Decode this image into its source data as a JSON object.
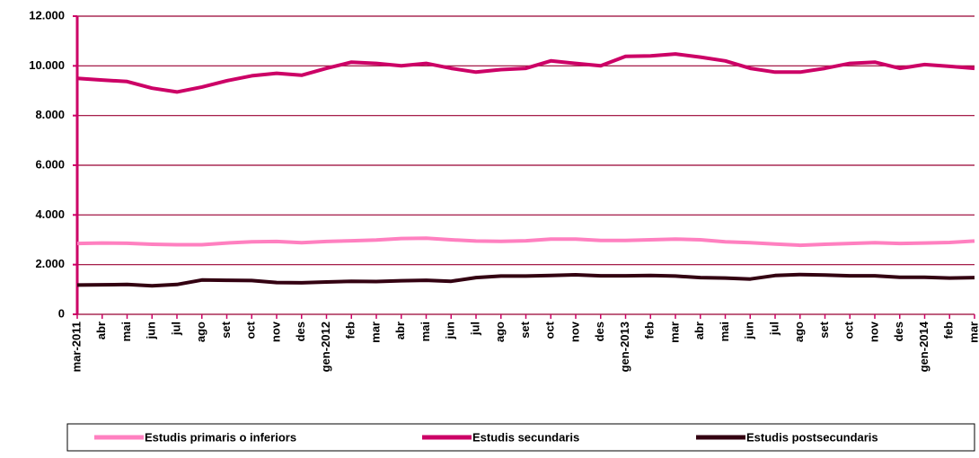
{
  "chart_data": {
    "type": "line",
    "categories": [
      "mar-2011",
      "abr",
      "mai",
      "jun",
      "jul",
      "ago",
      "set",
      "oct",
      "nov",
      "des",
      "gen-2012",
      "feb",
      "mar",
      "abr",
      "mai",
      "jun",
      "jul",
      "ago",
      "set",
      "oct",
      "nov",
      "des",
      "gen-2013",
      "feb",
      "mar",
      "abr",
      "mai",
      "jun",
      "jul",
      "ago",
      "set",
      "oct",
      "nov",
      "des",
      "gen-2014",
      "feb",
      "mar"
    ],
    "series": [
      {
        "name": "Estudis primaris o inferiors",
        "color": "#ff80c0",
        "values": [
          2850,
          2870,
          2860,
          2820,
          2800,
          2800,
          2870,
          2920,
          2930,
          2880,
          2930,
          2960,
          2990,
          3050,
          3060,
          3000,
          2950,
          2940,
          2960,
          3030,
          3030,
          2970,
          2970,
          3000,
          3030,
          3000,
          2920,
          2880,
          2830,
          2780,
          2820,
          2850,
          2880,
          2850,
          2870,
          2890,
          2950
        ]
      },
      {
        "name": "Estudis secundaris",
        "color": "#cc0066",
        "values": [
          9500,
          9430,
          9370,
          9100,
          8950,
          9150,
          9400,
          9600,
          9700,
          9620,
          9900,
          10150,
          10100,
          10000,
          10100,
          9900,
          9750,
          9850,
          9900,
          10200,
          10100,
          10000,
          10380,
          10400,
          10480,
          10350,
          10200,
          9900,
          9750,
          9750,
          9900,
          10100,
          10150,
          9900,
          10050,
          9980,
          9900
        ]
      },
      {
        "name": "Estudis postsecundaris",
        "color": "#330011",
        "values": [
          1180,
          1190,
          1200,
          1150,
          1200,
          1380,
          1370,
          1360,
          1280,
          1270,
          1300,
          1330,
          1320,
          1350,
          1370,
          1330,
          1480,
          1540,
          1540,
          1560,
          1590,
          1550,
          1550,
          1560,
          1540,
          1480,
          1460,
          1420,
          1560,
          1600,
          1580,
          1550,
          1550,
          1490,
          1490,
          1460,
          1480
        ]
      }
    ],
    "ylim": [
      0,
      12000
    ],
    "yticks": [
      {
        "value": 0,
        "label": "0"
      },
      {
        "value": 2000,
        "label": "2.000"
      },
      {
        "value": 4000,
        "label": "4.000"
      },
      {
        "value": 6000,
        "label": "6.000"
      },
      {
        "value": 8000,
        "label": "8.000"
      },
      {
        "value": 10000,
        "label": "10.000"
      },
      {
        "value": 12000,
        "label": "12.000"
      }
    ],
    "grid": true,
    "legend": "bottom"
  }
}
